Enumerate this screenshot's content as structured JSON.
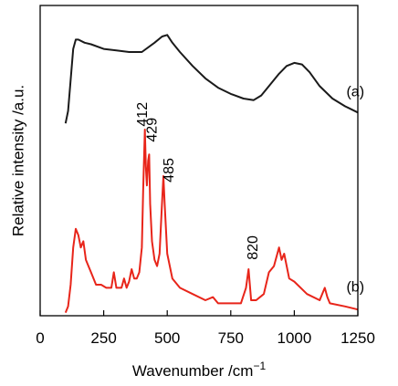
{
  "chart_data": {
    "type": "line",
    "xlabel": "Wavenumber /cm",
    "xlabel_sup": "−1",
    "ylabel": "Relative intensity /a.u.",
    "xlim": [
      0,
      1250
    ],
    "xticks": [
      0,
      250,
      500,
      750,
      1000,
      1250
    ],
    "xtick_labels": [
      "0",
      "250",
      "500",
      "750",
      "1000",
      "1250"
    ],
    "ylim": [
      0,
      100
    ],
    "series": [
      {
        "name": "(a)",
        "color": "#1a1a1a",
        "x": [
          100,
          110,
          120,
          130,
          140,
          150,
          175,
          200,
          250,
          300,
          350,
          400,
          450,
          480,
          500,
          520,
          550,
          600,
          650,
          700,
          750,
          800,
          840,
          870,
          900,
          940,
          970,
          1000,
          1030,
          1060,
          1100,
          1150,
          1200,
          1250
        ],
        "values": [
          62,
          66,
          76,
          86,
          89,
          89,
          88,
          87.5,
          86,
          85.5,
          85,
          85,
          88,
          90,
          90.5,
          88,
          85,
          80.5,
          76.5,
          73.5,
          71.5,
          70,
          69.5,
          71,
          74,
          78,
          80.5,
          81.5,
          81,
          78.5,
          74,
          70,
          67.5,
          65.5
        ]
      },
      {
        "name": "(b)",
        "color": "#e8251a",
        "x": [
          100,
          110,
          120,
          130,
          140,
          150,
          160,
          170,
          180,
          190,
          200,
          220,
          240,
          260,
          280,
          290,
          300,
          320,
          330,
          340,
          350,
          360,
          370,
          380,
          390,
          400,
          405,
          412,
          416,
          420,
          425,
          429,
          433,
          440,
          450,
          460,
          470,
          478,
          485,
          490,
          500,
          520,
          550,
          600,
          650,
          680,
          700,
          750,
          790,
          810,
          820,
          830,
          850,
          880,
          900,
          920,
          940,
          950,
          960,
          980,
          1000,
          1050,
          1100,
          1120,
          1130,
          1140,
          1200,
          1250
        ],
        "values": [
          1,
          3,
          10,
          22,
          28,
          26,
          22,
          24,
          18,
          16,
          14,
          10,
          10,
          9,
          9,
          14,
          9,
          9,
          12,
          9,
          11,
          15,
          12,
          12,
          14,
          22,
          40,
          60,
          48,
          42,
          50,
          52,
          36,
          24,
          18,
          16,
          20,
          34,
          45,
          36,
          20,
          12,
          9,
          7,
          5,
          6,
          4,
          4,
          4,
          9,
          15,
          5,
          5,
          7,
          14,
          16,
          22,
          18,
          20,
          12,
          11,
          7,
          5,
          9,
          6,
          4,
          3,
          2
        ]
      }
    ],
    "annotations": [
      {
        "text": "412",
        "x": 405,
        "y": 61
      },
      {
        "text": "429",
        "x": 442,
        "y": 56
      },
      {
        "text": "485",
        "x": 510,
        "y": 43
      },
      {
        "text": "820",
        "x": 840,
        "y": 18
      },
      {
        "text": "(a)",
        "x": 1205,
        "y": 72
      },
      {
        "text": "(b)",
        "x": 1205,
        "y": 9
      }
    ],
    "grid": false,
    "legend": "none"
  }
}
